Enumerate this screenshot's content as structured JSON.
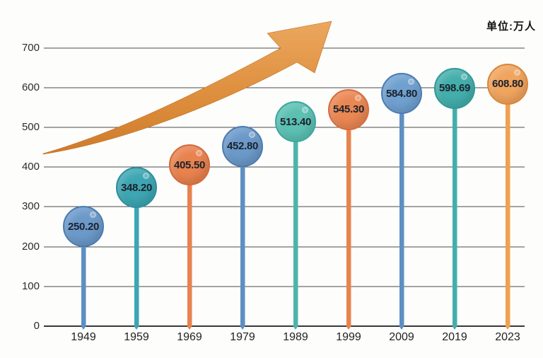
{
  "chart_data": {
    "type": "bar",
    "subtype": "lollipop",
    "title": "",
    "unit_label": "单位:万人",
    "xlabel": "",
    "ylabel": "",
    "ylim": [
      0,
      700
    ],
    "grid": true,
    "legend": "none",
    "categories": [
      "1949",
      "1959",
      "1969",
      "1979",
      "1989",
      "1999",
      "2009",
      "2019",
      "2023"
    ],
    "values": [
      250.2,
      348.2,
      405.5,
      452.8,
      513.4,
      545.3,
      584.8,
      598.69,
      608.8
    ],
    "value_labels": [
      "250.20",
      "348.20",
      "405.50",
      "452.80",
      "513.40",
      "545.30",
      "584.80",
      "598.69",
      "608.80"
    ],
    "yticks_desc": [
      700,
      600,
      500,
      400,
      300,
      200,
      100,
      0
    ],
    "ytick_labels_desc": [
      "700",
      "600",
      "500",
      "400",
      "300",
      "200",
      "100",
      "0"
    ],
    "point_colors": [
      {
        "fill": "#6B99C9",
        "border": "#4A7CB2",
        "stick": "#5E8FC2"
      },
      {
        "fill": "#3DA6B2",
        "border": "#2C8FA0",
        "stick": "#3DA6B2"
      },
      {
        "fill": "#E8824E",
        "border": "#D6693A",
        "stick": "#E8824E"
      },
      {
        "fill": "#6B99C9",
        "border": "#4A7CB2",
        "stick": "#5E8FC2"
      },
      {
        "fill": "#5CC0B3",
        "border": "#39A89D",
        "stick": "#4BB5AB"
      },
      {
        "fill": "#EA8753",
        "border": "#D86C3C",
        "stick": "#E8824E"
      },
      {
        "fill": "#6FA0CF",
        "border": "#4A7CB5",
        "stick": "#5E8FC2"
      },
      {
        "fill": "#43AEAC",
        "border": "#2E9A98",
        "stick": "#43AEAC"
      },
      {
        "fill": "#F0A45E",
        "border": "#DE8536",
        "stick": "#EFA150"
      }
    ],
    "trend_arrow": {
      "color_top": "#EBA75F",
      "color_mid": "#DE8F3D",
      "color_bottom": "#CE7B2B"
    }
  }
}
